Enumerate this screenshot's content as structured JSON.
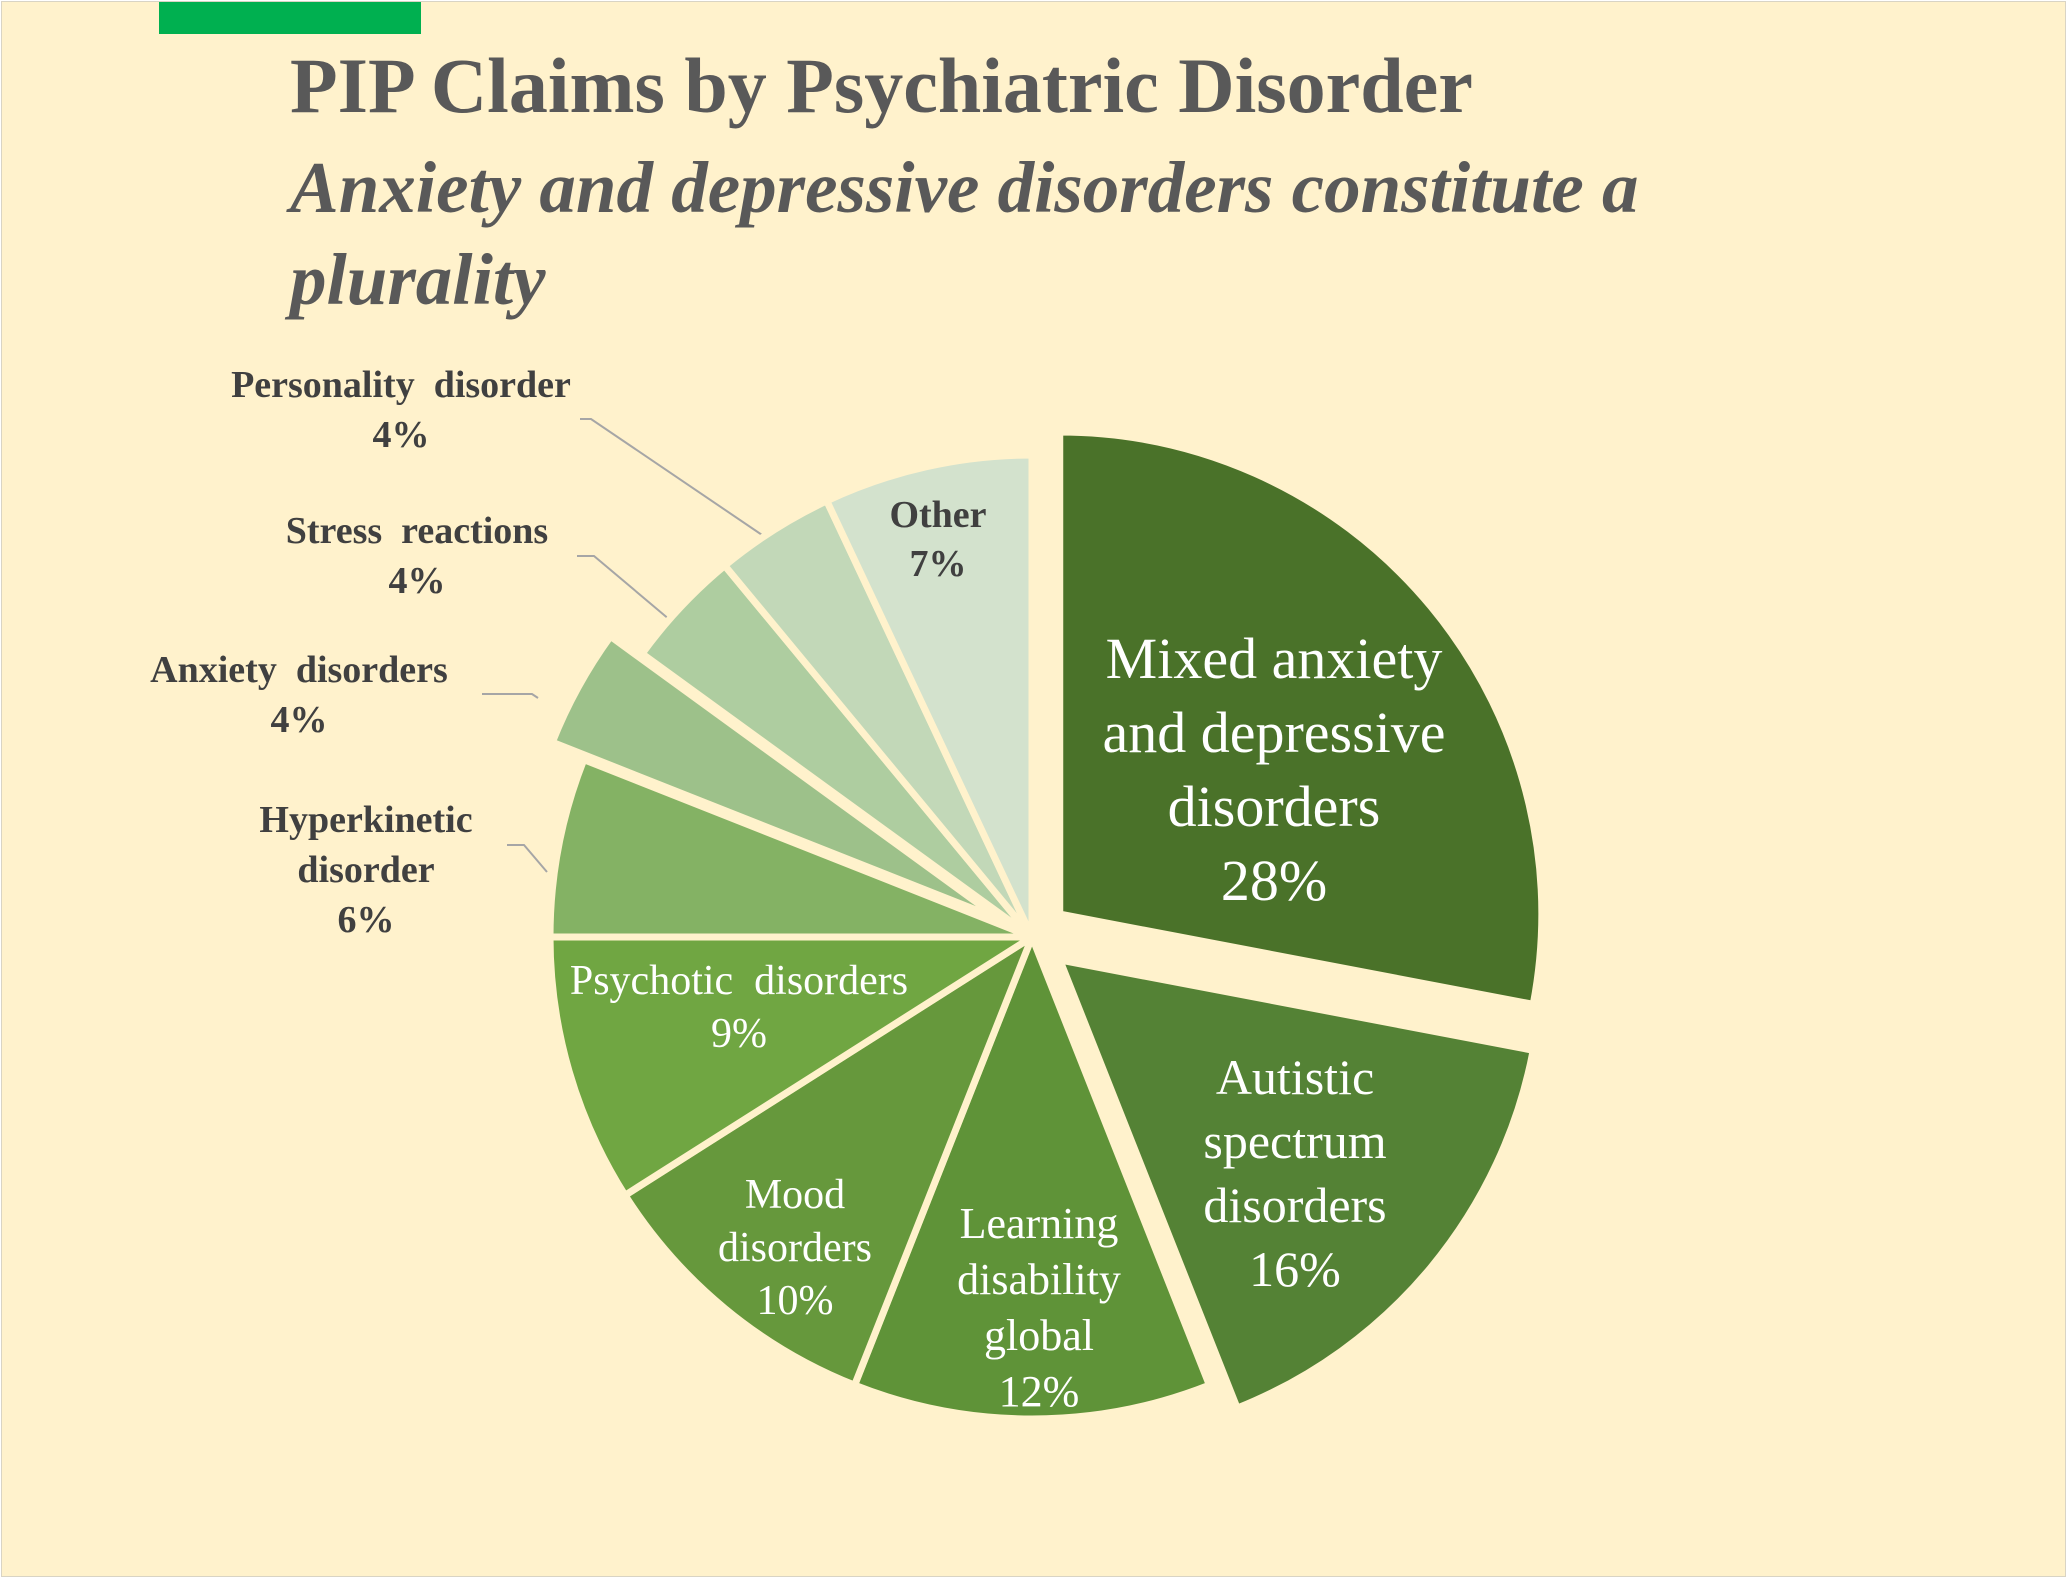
{
  "slide": {
    "accent_color": "#00b050",
    "background_color": "#fff2cc",
    "title": "PIP Claims by Psychiatric Disorder",
    "subtitle": "Anxiety and depressive disorders constitute a plurality"
  },
  "chart_data": {
    "type": "pie",
    "title": "PIP Claims by Psychiatric Disorder",
    "subtitle": "Anxiety and depressive disorders constitute a plurality",
    "value_unit": "%",
    "slices": [
      {
        "label": "Mixed anxiety and depressive disorders",
        "label_lines": [
          "Mixed anxiety",
          "and depressive",
          "disorders"
        ],
        "value": 28,
        "value_label": "28%",
        "color": "#4a7229",
        "exploded": true
      },
      {
        "label": "Autistic spectrum disorders",
        "label_lines": [
          "Autistic",
          "spectrum",
          "disorders"
        ],
        "value": 16,
        "value_label": "16%",
        "color": "#548235",
        "exploded": true
      },
      {
        "label": "Learning disability global",
        "label_lines": [
          "Learning",
          "disability",
          "global"
        ],
        "value": 12,
        "value_label": "12%",
        "color": "#5f9338",
        "exploded": false
      },
      {
        "label": "Mood disorders",
        "label_lines": [
          "Mood",
          "disorders"
        ],
        "value": 10,
        "value_label": "10%",
        "color": "#66983c",
        "exploded": false
      },
      {
        "label": "Psychotic disorders",
        "label_lines": [
          "Psychotic  disorders"
        ],
        "value": 9,
        "value_label": "9%",
        "color": "#70a642",
        "exploded": false
      },
      {
        "label": "Hyperkinetic disorder",
        "label_lines": [
          "Hyperkinetic",
          "disorder"
        ],
        "value": 6,
        "value_label": "6%",
        "color": "#84b264",
        "exploded": false
      },
      {
        "label": "Anxiety disorders",
        "label_lines": [
          "Anxiety  disorders"
        ],
        "value": 4,
        "value_label": "4%",
        "color": "#9dc18a",
        "exploded": true
      },
      {
        "label": "Stress reactions",
        "label_lines": [
          "Stress  reactions"
        ],
        "value": 4,
        "value_label": "4%",
        "color": "#aecda0",
        "exploded": false
      },
      {
        "label": "Personality disorder",
        "label_lines": [
          "Personality  disorder"
        ],
        "value": 4,
        "value_label": "4%",
        "color": "#c2d8b8",
        "exploded": false
      },
      {
        "label": "Other",
        "label_lines": [
          "Other"
        ],
        "value": 7,
        "value_label": "7%",
        "color": "#d3e2cd",
        "exploded": false
      }
    ],
    "label_placement": [
      "inside",
      "inside",
      "inside",
      "inside",
      "inside",
      "outside-left",
      "outside-left",
      "outside-left",
      "outside-left",
      "inside"
    ],
    "legend": "none"
  }
}
